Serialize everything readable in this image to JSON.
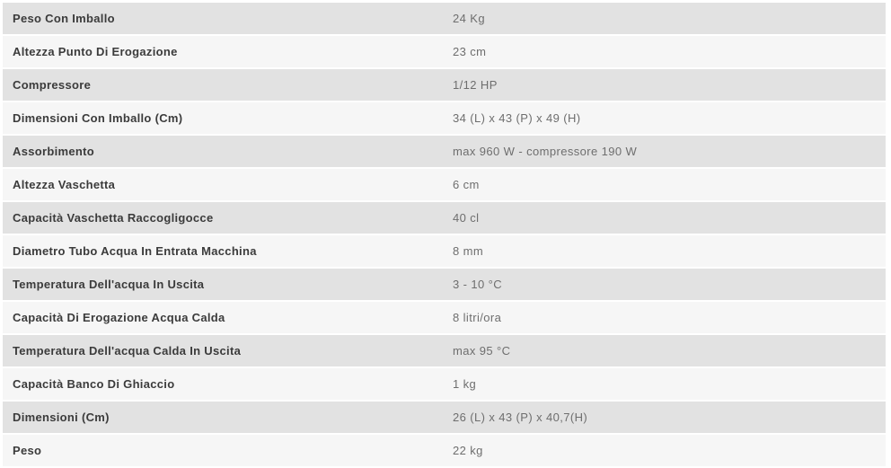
{
  "colors": {
    "row_alt_bg": "#e2e2e2",
    "row_bg": "#f6f6f6",
    "label_text": "#3b3b3b",
    "value_text": "#6e6e6e",
    "page_bg": "#ffffff"
  },
  "table": {
    "rows": [
      {
        "label": "Peso Con Imballo",
        "value": "24 Kg"
      },
      {
        "label": "Altezza Punto Di Erogazione",
        "value": "23 cm"
      },
      {
        "label": "Compressore",
        "value": "1/12 HP"
      },
      {
        "label": "Dimensioni Con Imballo (Cm)",
        "value": "34 (L) x 43 (P) x 49 (H)"
      },
      {
        "label": "Assorbimento",
        "value": "max 960 W - compressore 190 W"
      },
      {
        "label": "Altezza Vaschetta",
        "value": "6 cm"
      },
      {
        "label": "Capacità Vaschetta Raccogligocce",
        "value": "40 cl"
      },
      {
        "label": "Diametro Tubo Acqua In Entrata Macchina",
        "value": "8 mm"
      },
      {
        "label": "Temperatura Dell'acqua In Uscita",
        "value": "3 - 10 °C"
      },
      {
        "label": "Capacità Di Erogazione Acqua Calda",
        "value": "8 litri/ora"
      },
      {
        "label": "Temperatura Dell'acqua Calda In Uscita",
        "value": "max 95 °C"
      },
      {
        "label": "Capacità Banco Di Ghiaccio",
        "value": "1 kg"
      },
      {
        "label": "Dimensioni (Cm)",
        "value": "26 (L) x 43 (P) x 40,7(H)"
      },
      {
        "label": "Peso",
        "value": "22 kg"
      }
    ]
  }
}
